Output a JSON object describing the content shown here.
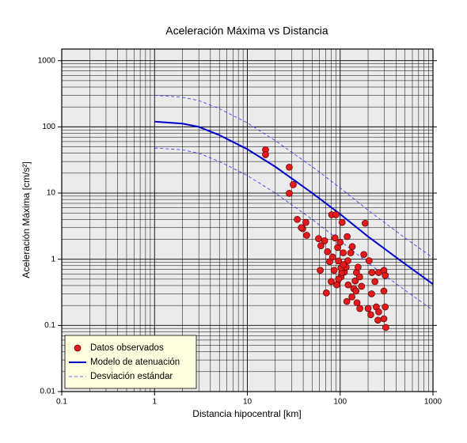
{
  "chart_data": {
    "type": "scatter",
    "title": "Aceleración Máxima vs Distancia",
    "xlabel": "Distancia hipocentral [km]",
    "ylabel": "Aceleración Máxima [cm/s²]",
    "xscale": "log",
    "yscale": "log",
    "xlim": [
      0.1,
      1000
    ],
    "ylim": [
      0.01,
      1500
    ],
    "xticks": [
      0.1,
      1,
      10,
      100,
      1000
    ],
    "yticks": [
      0.01,
      0.1,
      1,
      10,
      100,
      1000
    ],
    "xminorticks": [
      0.2,
      0.3,
      0.4,
      0.5,
      0.6,
      0.7,
      0.8,
      0.9,
      2,
      3,
      4,
      5,
      6,
      7,
      8,
      9,
      20,
      30,
      40,
      50,
      60,
      70,
      80,
      90,
      200,
      300,
      400,
      500,
      600,
      700,
      800,
      900
    ],
    "yminorticks": [
      0.02,
      0.03,
      0.04,
      0.05,
      0.06,
      0.07,
      0.08,
      0.09,
      0.2,
      0.3,
      0.4,
      0.5,
      0.6,
      0.7,
      0.8,
      0.9,
      2,
      3,
      4,
      5,
      6,
      7,
      8,
      9,
      20,
      30,
      40,
      50,
      60,
      70,
      80,
      90,
      200,
      300,
      400,
      500,
      600,
      700,
      800,
      900
    ],
    "grid": true,
    "legend": "lower left",
    "series": [
      {
        "name": "Datos observados",
        "type": "scatter",
        "color": "#e41a1c",
        "x": [
          15.7,
          15.7,
          28.3,
          31.2,
          28.3,
          34.5,
          42.7,
          39.5,
          43.6,
          38.1,
          58.6,
          62,
          68,
          81,
          90,
          105,
          61,
          73,
          77,
          83,
          88,
          94,
          100,
          71,
          92,
          102,
          111,
          116,
          121,
          130,
          135,
          145,
          150,
          156,
          162,
          170,
          180,
          186,
          118,
          152,
          200,
          214,
          218,
          237,
          260,
          245,
          255,
          296,
          306,
          296,
          310,
          296,
          306,
          260,
          140,
          122,
          104,
          96,
          86,
          80,
          108,
          119,
          102,
          96,
          205,
          220,
          163,
          148,
          134,
          108
        ],
        "values": [
          45,
          38,
          24.6,
          13.4,
          9.9,
          4,
          3.6,
          2.9,
          2.3,
          3.0,
          2.05,
          1.6,
          1.9,
          4.7,
          4.7,
          3.6,
          0.68,
          1.3,
          0.92,
          1.08,
          2.1,
          1.5,
          1.8,
          0.31,
          0.41,
          0.54,
          0.64,
          0.76,
          0.95,
          1.25,
          1.55,
          0.47,
          0.63,
          0.76,
          0.54,
          0.39,
          1.18,
          3.5,
          0.23,
          0.22,
          0.18,
          0.145,
          0.3,
          0.46,
          0.63,
          0.19,
          0.12,
          0.33,
          0.19,
          0.126,
          0.093,
          0.68,
          0.57,
          0.16,
          0.36,
          0.41,
          0.63,
          0.94,
          0.68,
          0.46,
          1.25,
          2.2,
          0.74,
          0.5,
          0.95,
          0.63,
          0.18,
          0.33,
          0.27,
          0.83
        ]
      },
      {
        "name": "Modelo de atenuación",
        "type": "line",
        "color": "#0000cc",
        "x": [
          1,
          2,
          3,
          5,
          10,
          20,
          50,
          100,
          200,
          500,
          1000
        ],
        "values": [
          120,
          112,
          100,
          75,
          46,
          25,
          10,
          4.8,
          2.2,
          0.85,
          0.42
        ]
      },
      {
        "name": "Desviación estándar",
        "type": "line",
        "dashed": true,
        "color": "#3333ff",
        "x": [
          1,
          2,
          3,
          5,
          10,
          20,
          50,
          100,
          200,
          500,
          1000
        ],
        "values": [
          300,
          280,
          250,
          188,
          115,
          62,
          25,
          12,
          5.5,
          2.1,
          1.05
        ]
      },
      {
        "type": "line",
        "dashed": true,
        "color": "#3333ff",
        "x": [
          1,
          2,
          3,
          5,
          10,
          20,
          50,
          100,
          200,
          500,
          1000
        ],
        "values": [
          48,
          45,
          40,
          30,
          18.4,
          10,
          4,
          1.9,
          0.88,
          0.34,
          0.17
        ]
      }
    ]
  }
}
